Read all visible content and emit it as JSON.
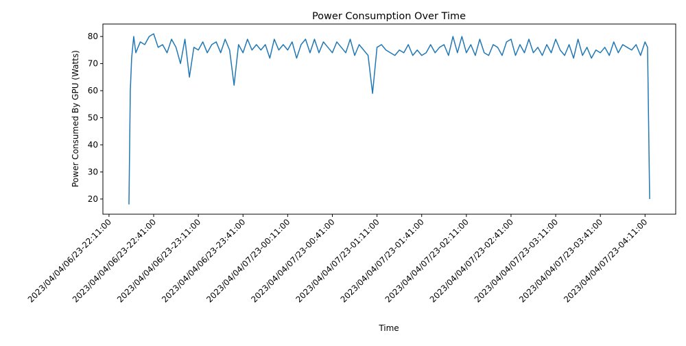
{
  "chart_data": {
    "type": "line",
    "title": "Power Consumption Over Time",
    "xlabel": "Time",
    "ylabel": "Power Consumed By GPU (Watts)",
    "xlim": [
      -4.1,
      380.6
    ],
    "ylim": [
      14.4,
      84.6
    ],
    "xticks": [
      {
        "value": 0,
        "label": "2023/04/04/06/23-22:11:00"
      },
      {
        "value": 30,
        "label": "2023/04/04/06/23-22:41:00"
      },
      {
        "value": 60,
        "label": "2023/04/04/06/23-23:11:00"
      },
      {
        "value": 90,
        "label": "2023/04/04/06/23-23:41:00"
      },
      {
        "value": 120,
        "label": "2023/04/04/07/23-00:11:00"
      },
      {
        "value": 150,
        "label": "2023/04/04/07/23-00:41:00"
      },
      {
        "value": 180,
        "label": "2023/04/04/07/23-01:11:00"
      },
      {
        "value": 210,
        "label": "2023/04/04/07/23-01:41:00"
      },
      {
        "value": 240,
        "label": "2023/04/04/07/23-02:11:00"
      },
      {
        "value": 270,
        "label": "2023/04/04/07/23-02:41:00"
      },
      {
        "value": 300,
        "label": "2023/04/04/07/23-03:11:00"
      },
      {
        "value": 330,
        "label": "2023/04/04/07/23-03:41:00"
      },
      {
        "value": 360,
        "label": "2023/04/04/07/23-04:11:00"
      }
    ],
    "yticks": [
      20,
      30,
      40,
      50,
      60,
      70,
      80
    ],
    "series": [
      {
        "color": "#1f77b4",
        "x": [
          13.4,
          14.3,
          15.2,
          16.6,
          18,
          21,
          24,
          27,
          30,
          33,
          36,
          39,
          42,
          45,
          48,
          51,
          54,
          57,
          60,
          63,
          66,
          69,
          72,
          75,
          78,
          81,
          84,
          87,
          90,
          93,
          96,
          99,
          102,
          105,
          108,
          111,
          114,
          117,
          120,
          123,
          126,
          129,
          132,
          135,
          138,
          141,
          144,
          147,
          150,
          153,
          156,
          159,
          162,
          165,
          168,
          171,
          174,
          177,
          180,
          183,
          186,
          189,
          192,
          195,
          198,
          201,
          204,
          207,
          210,
          213,
          216,
          219,
          222,
          225,
          228,
          231,
          234,
          237,
          240,
          243,
          246,
          249,
          252,
          255,
          258,
          261,
          264,
          267,
          270,
          273,
          276,
          279,
          282,
          285,
          288,
          291,
          294,
          297,
          300,
          303,
          306,
          309,
          312,
          315,
          318,
          321,
          324,
          327,
          330,
          333,
          336,
          339,
          342,
          345,
          348,
          351,
          354,
          357,
          360,
          361.7,
          363.1
        ],
        "values": [
          18,
          60,
          72,
          80,
          74,
          78,
          77,
          80,
          81,
          76,
          77,
          74,
          79,
          76,
          70,
          79,
          65,
          76,
          75,
          78,
          74,
          77,
          78,
          74,
          79,
          75,
          62,
          77,
          74,
          79,
          75,
          77,
          75,
          77,
          72,
          79,
          75,
          77,
          75,
          78,
          72,
          77,
          79,
          74,
          79,
          74,
          78,
          76,
          74,
          78,
          76,
          74,
          79,
          73,
          77,
          75,
          73,
          59,
          76,
          77,
          75,
          74,
          73,
          75,
          74,
          77,
          73,
          75,
          73,
          74,
          77,
          74,
          76,
          77,
          73,
          80,
          74,
          80,
          74,
          77,
          73,
          79,
          74,
          73,
          77,
          76,
          73,
          78,
          79,
          73,
          77,
          74,
          79,
          74,
          76,
          73,
          77,
          74,
          79,
          75,
          73,
          77,
          72,
          79,
          73,
          76,
          72,
          75,
          74,
          76,
          73,
          78,
          74,
          77,
          76,
          75,
          77,
          73,
          78,
          76,
          20
        ]
      }
    ]
  }
}
